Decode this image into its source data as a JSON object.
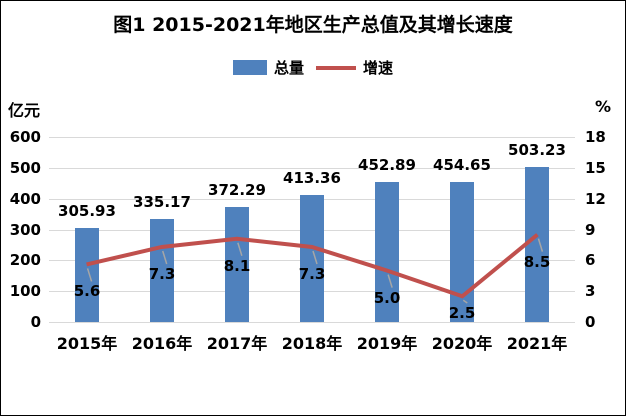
{
  "title": "图1 2015-2021年地区生产总值及其增长速度",
  "legend": [
    {
      "label": "总量",
      "type": "bar",
      "color": "#4f81bd"
    },
    {
      "label": "增速",
      "type": "line",
      "color": "#c0504d"
    }
  ],
  "chart_data": {
    "type": "bar+line",
    "title": "图1 2015-2021年地区生产总值及其增长速度",
    "categories": [
      "2015年",
      "2016年",
      "2017年",
      "2018年",
      "2019年",
      "2020年",
      "2021年"
    ],
    "series": [
      {
        "name": "总量",
        "type": "bar",
        "axis": "left",
        "color": "#4f81bd",
        "values": [
          305.93,
          335.17,
          372.29,
          413.36,
          452.89,
          454.65,
          503.23
        ],
        "labels": [
          "305.93",
          "335.17",
          "372.29",
          "413.36",
          "452.89",
          "454.65",
          "503.23"
        ]
      },
      {
        "name": "增速",
        "type": "line",
        "axis": "right",
        "color": "#c0504d",
        "values": [
          5.6,
          7.3,
          8.1,
          7.3,
          5.0,
          2.5,
          8.5
        ],
        "labels": [
          "5.6",
          "7.3",
          "8.1",
          "7.3",
          "5.0",
          "2.5",
          "8.5"
        ]
      }
    ],
    "left_axis": {
      "unit": "亿元",
      "min": 0,
      "max": 600,
      "step": 100,
      "ticks": [
        "0",
        "100",
        "200",
        "300",
        "400",
        "500",
        "600"
      ]
    },
    "right_axis": {
      "unit": "%",
      "min": 0,
      "max": 18,
      "step": 3,
      "ticks": [
        "0",
        "3",
        "6",
        "9",
        "12",
        "15",
        "18"
      ]
    },
    "grid": true,
    "legend_position": "top",
    "gridline_color": "#d9d9d9",
    "leader_line_color": "#a6a6a6"
  }
}
